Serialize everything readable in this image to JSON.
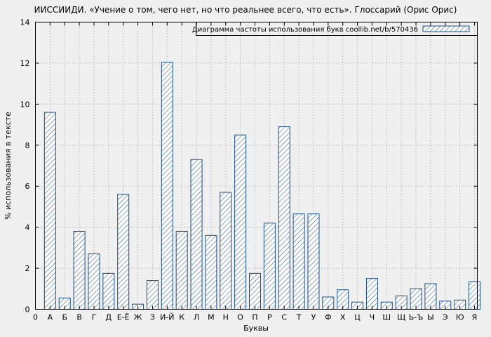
{
  "chart_data": {
    "type": "bar",
    "title": "ИИССИИДИ. «Учение о том, чего нет, но что реальнее всего, что есть». Глоссарий (Орис Орис)",
    "legend": "Диаграмма частоты использования букв coollib.net/b/570436",
    "xlabel": "Буквы",
    "ylabel": "% использования в тексте",
    "origin_label": "0",
    "ylim": [
      0,
      14
    ],
    "ytick_step": 2,
    "yticks": [
      0,
      2,
      4,
      6,
      8,
      10,
      12,
      14
    ],
    "categories": [
      "А",
      "Б",
      "В",
      "Г",
      "Д",
      "Е-Ё",
      "Ж",
      "З",
      "И-Й",
      "К",
      "Л",
      "М",
      "Н",
      "О",
      "П",
      "Р",
      "С",
      "Т",
      "У",
      "Ф",
      "Х",
      "Ц",
      "Ч",
      "Ш",
      "Щ",
      "Ь-Ъ",
      "Ы",
      "Э",
      "Ю",
      "Я"
    ],
    "values": [
      9.6,
      0.55,
      3.8,
      2.7,
      1.75,
      5.6,
      0.25,
      1.4,
      12.05,
      3.8,
      7.3,
      3.6,
      5.7,
      8.5,
      1.75,
      4.2,
      8.9,
      4.65,
      4.65,
      0.6,
      0.95,
      0.35,
      1.5,
      0.35,
      0.65,
      1.0,
      1.25,
      0.4,
      0.45,
      1.35
    ],
    "grid": "both-dotted",
    "legend_position": "top-right-boxed",
    "colors": {
      "bar_stroke": "#1a4e8a",
      "bar_fill": "#ffffff",
      "grid": "#b5b5b5",
      "axis": "#000000",
      "background": "#f0f0f0"
    }
  }
}
